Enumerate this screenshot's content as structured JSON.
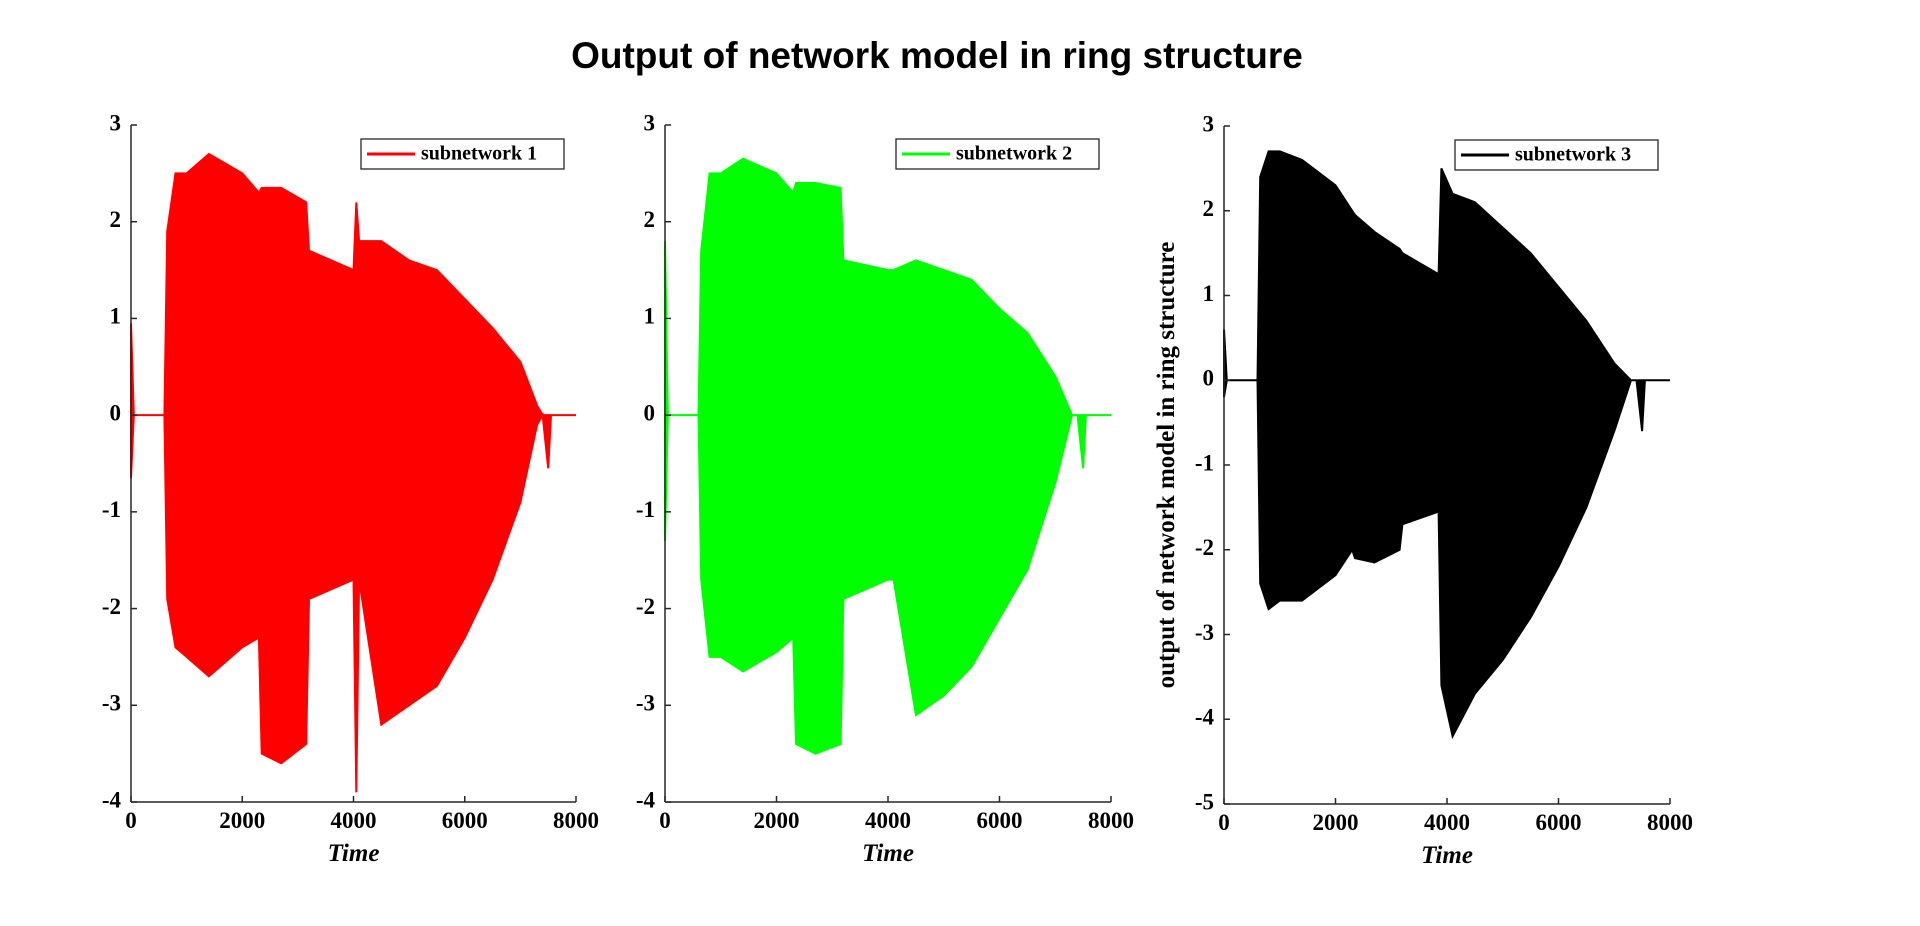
{
  "title": "Output of network model in ring structure",
  "chart_data": [
    {
      "type": "band",
      "xlabel": "Time",
      "legend": "upper-right",
      "grid": false,
      "x": [
        0,
        50,
        600,
        650,
        800,
        1000,
        1400,
        2000,
        2300,
        2350,
        2700,
        3150,
        3200,
        4000,
        4050,
        4100,
        4500,
        5000,
        5500,
        6000,
        6500,
        7000,
        7300,
        7400,
        7500,
        7550,
        8000
      ],
      "xlim": [
        0,
        8000
      ],
      "xticks": [
        0,
        2000,
        4000,
        6000,
        8000
      ],
      "ylim": [
        -4,
        3
      ],
      "yticks": [
        -4,
        -3,
        -2,
        -1,
        0,
        1,
        2,
        3
      ],
      "series": [
        {
          "name": "subnetwork 1",
          "color": "#ff0000",
          "upper": [
            0.95,
            0,
            0,
            1.9,
            2.5,
            2.5,
            2.7,
            2.5,
            2.3,
            2.35,
            2.35,
            2.2,
            1.7,
            1.5,
            2.2,
            1.8,
            1.8,
            1.6,
            1.5,
            1.2,
            0.9,
            0.55,
            0.1,
            0,
            0,
            0,
            0
          ],
          "lower": [
            -0.65,
            0,
            0,
            -1.9,
            -2.4,
            -2.5,
            -2.7,
            -2.4,
            -2.3,
            -3.5,
            -3.6,
            -3.4,
            -1.9,
            -1.7,
            -3.9,
            -1.7,
            -3.2,
            -3.0,
            -2.8,
            -2.3,
            -1.7,
            -0.9,
            -0.1,
            0,
            -0.55,
            0,
            0
          ]
        }
      ]
    },
    {
      "type": "band",
      "xlabel": "Time",
      "legend": "upper-right",
      "grid": false,
      "x": [
        0,
        50,
        600,
        650,
        800,
        1000,
        1400,
        2000,
        2300,
        2350,
        2700,
        3150,
        3200,
        4000,
        4050,
        4100,
        4500,
        5000,
        5500,
        6000,
        6500,
        7000,
        7300,
        7400,
        7500,
        7550,
        8000
      ],
      "xlim": [
        0,
        8000
      ],
      "xticks": [
        0,
        2000,
        4000,
        6000,
        8000
      ],
      "ylim": [
        -4,
        3
      ],
      "yticks": [
        -4,
        -3,
        -2,
        -1,
        0,
        1,
        2,
        3
      ],
      "series": [
        {
          "name": "subnetwork 2",
          "color": "#00ff00",
          "upper": [
            1.8,
            0,
            0,
            1.7,
            2.5,
            2.5,
            2.65,
            2.5,
            2.3,
            2.4,
            2.4,
            2.35,
            1.6,
            1.5,
            1.5,
            1.5,
            1.6,
            1.5,
            1.4,
            1.1,
            0.85,
            0.4,
            0,
            0,
            0,
            0,
            0
          ],
          "lower": [
            -1.3,
            0,
            0,
            -1.7,
            -2.5,
            -2.5,
            -2.65,
            -2.45,
            -2.3,
            -3.4,
            -3.5,
            -3.4,
            -1.9,
            -1.7,
            -1.7,
            -1.7,
            -3.1,
            -2.9,
            -2.6,
            -2.1,
            -1.6,
            -0.7,
            0,
            0,
            -0.55,
            0,
            0
          ]
        }
      ]
    },
    {
      "type": "band",
      "xlabel": "Time",
      "ylabel": "output of network model in ring structure",
      "legend": "upper-right",
      "grid": false,
      "x": [
        0,
        50,
        600,
        650,
        800,
        1000,
        1400,
        2000,
        2300,
        2350,
        2700,
        3150,
        3200,
        3850,
        3900,
        4100,
        4500,
        5000,
        5500,
        6000,
        6500,
        7000,
        7300,
        7400,
        7500,
        7550,
        8000
      ],
      "xlim": [
        0,
        8000
      ],
      "xticks": [
        0,
        2000,
        4000,
        6000,
        8000
      ],
      "ylim": [
        -5,
        3
      ],
      "yticks": [
        -5,
        -4,
        -3,
        -2,
        -1,
        0,
        1,
        2,
        3
      ],
      "series": [
        {
          "name": "subnetwork 3",
          "color": "#000000",
          "upper": [
            0.6,
            0,
            0,
            2.4,
            2.7,
            2.7,
            2.6,
            2.3,
            2.0,
            1.95,
            1.75,
            1.55,
            1.5,
            1.25,
            2.5,
            2.2,
            2.1,
            1.8,
            1.5,
            1.1,
            0.7,
            0.2,
            0,
            0,
            0,
            0,
            0
          ],
          "lower": [
            -0.2,
            0,
            0,
            -2.4,
            -2.7,
            -2.6,
            -2.6,
            -2.3,
            -2.0,
            -2.1,
            -2.15,
            -2.0,
            -1.7,
            -1.55,
            -3.6,
            -4.2,
            -3.7,
            -3.3,
            -2.8,
            -2.2,
            -1.5,
            -0.6,
            0,
            0,
            -0.6,
            0,
            0
          ]
        }
      ]
    }
  ]
}
